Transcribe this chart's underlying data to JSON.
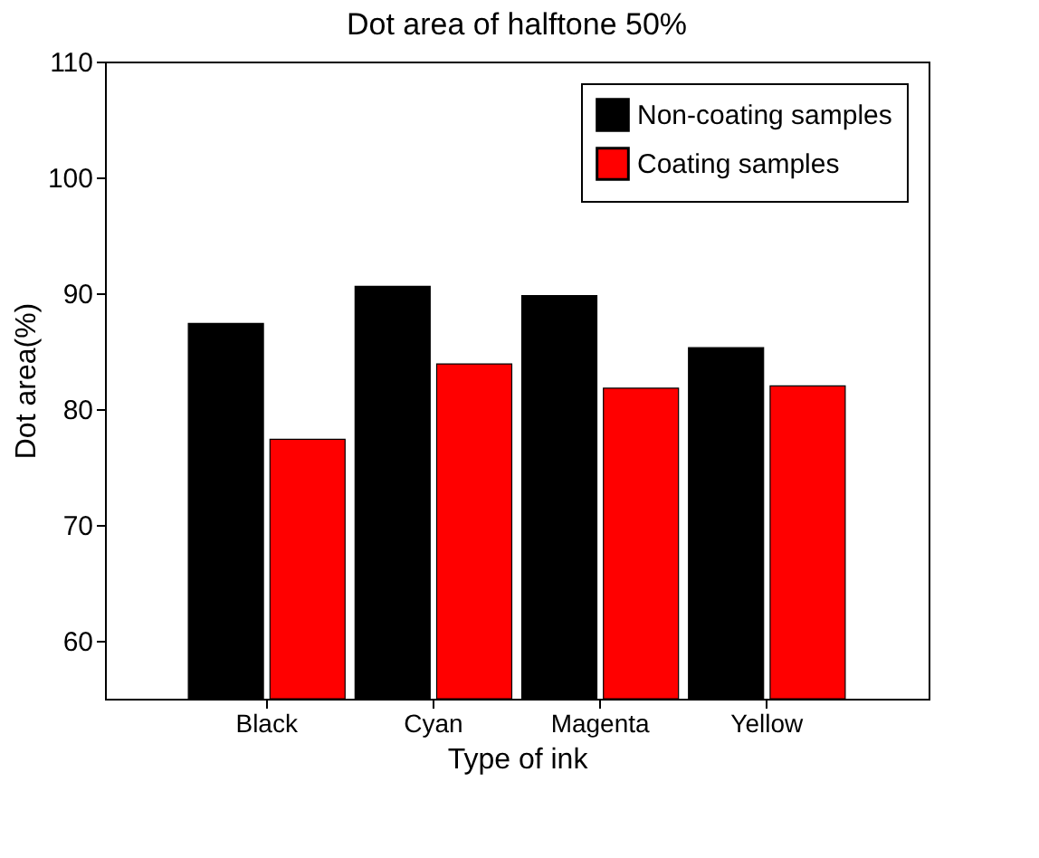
{
  "chart_data": {
    "type": "bar",
    "title": "Dot area of halftone 50%",
    "xlabel": "Type of ink",
    "ylabel": "Dot area(%)",
    "categories": [
      "Black",
      "Cyan",
      "Magenta",
      "Yellow"
    ],
    "series": [
      {
        "name": "Non-coating samples",
        "color": "#000000",
        "values": [
          87.4,
          90.6,
          89.8,
          85.3
        ]
      },
      {
        "name": "Coating samples",
        "color": "#ff0000",
        "values": [
          77.4,
          83.9,
          81.8,
          82.0
        ]
      }
    ],
    "ylim": [
      55,
      110
    ],
    "yticks": [
      60,
      70,
      80,
      90,
      100,
      110
    ],
    "grid": false,
    "legend": "top right"
  }
}
